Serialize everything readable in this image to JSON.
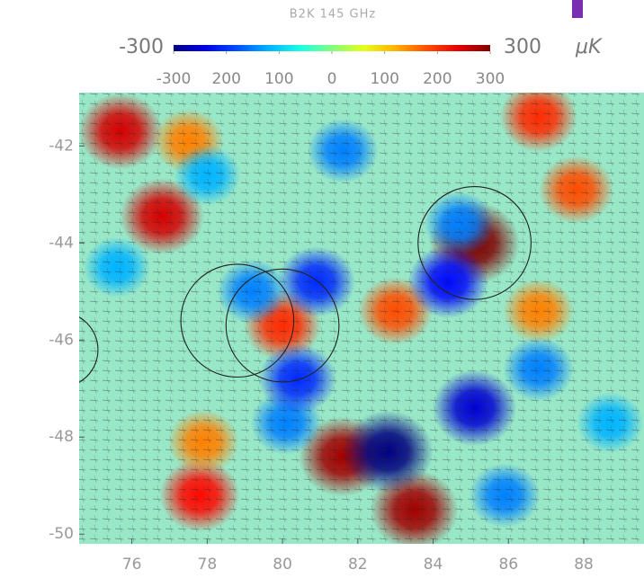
{
  "chart_data": {
    "type": "heatmap",
    "title": "B2K 145 GHz",
    "xlim": [
      74.6,
      89.6
    ],
    "ylim": [
      -50.2,
      -40.9
    ],
    "xticks": [
      76,
      78,
      80,
      82,
      84,
      86,
      88
    ],
    "yticks": [
      -42,
      -44,
      -46,
      -48,
      -50
    ],
    "colorbar": {
      "lim": [
        -300,
        300
      ],
      "unit": "μK",
      "ticks": [
        -300,
        {
          "value": -200,
          "label": "200"
        },
        {
          "value": -100,
          "label": "100"
        },
        0,
        100,
        200,
        300
      ]
    },
    "spots": [
      {
        "x": 75.7,
        "y": -41.7,
        "value": 250
      },
      {
        "x": 76.8,
        "y": -43.45,
        "value": 250
      },
      {
        "x": 77.5,
        "y": -41.9,
        "value": 150
      },
      {
        "x": 86.8,
        "y": -41.4,
        "value": 200
      },
      {
        "x": 87.8,
        "y": -42.9,
        "value": 180
      },
      {
        "x": 85.1,
        "y": -44.0,
        "value": 300
      },
      {
        "x": 80.0,
        "y": -45.7,
        "value": 200
      },
      {
        "x": 81.6,
        "y": -48.4,
        "value": 280
      },
      {
        "x": 83.5,
        "y": -49.5,
        "value": 280
      },
      {
        "x": 77.8,
        "y": -49.2,
        "value": 220
      },
      {
        "x": 77.9,
        "y": -48.1,
        "value": 150
      },
      {
        "x": 83.0,
        "y": -45.4,
        "value": 180
      },
      {
        "x": 86.8,
        "y": -45.4,
        "value": 150
      },
      {
        "x": 82.8,
        "y": -48.3,
        "value": -300
      },
      {
        "x": 85.1,
        "y": -47.4,
        "value": -250
      },
      {
        "x": 80.9,
        "y": -44.8,
        "value": -200
      },
      {
        "x": 79.2,
        "y": -45.0,
        "value": -150
      },
      {
        "x": 78.0,
        "y": -42.6,
        "value": -120
      },
      {
        "x": 81.6,
        "y": -42.1,
        "value": -150
      },
      {
        "x": 84.7,
        "y": -43.6,
        "value": -150
      },
      {
        "x": 84.4,
        "y": -44.8,
        "value": -220
      },
      {
        "x": 80.1,
        "y": -47.7,
        "value": -150
      },
      {
        "x": 80.4,
        "y": -46.8,
        "value": -200
      },
      {
        "x": 86.8,
        "y": -46.6,
        "value": -150
      },
      {
        "x": 88.7,
        "y": -47.7,
        "value": -120
      },
      {
        "x": 85.9,
        "y": -49.2,
        "value": -150
      },
      {
        "x": 75.6,
        "y": -44.5,
        "value": -120
      }
    ],
    "circles": [
      {
        "x": 85.1,
        "y": -44.0,
        "radius": 1.5
      },
      {
        "x": 78.8,
        "y": -45.6,
        "radius": 1.5
      },
      {
        "x": 80.0,
        "y": -45.7,
        "radius": 1.5
      },
      {
        "x": 74.1,
        "y": -46.2,
        "radius": 1.0
      }
    ]
  }
}
